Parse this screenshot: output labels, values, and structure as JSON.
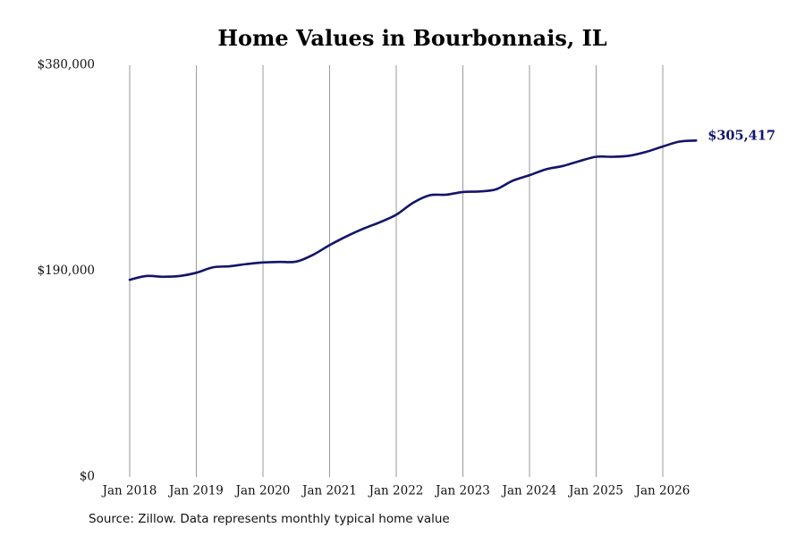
{
  "chart_data": {
    "type": "line",
    "title": "Home Values in Bourbonnais, IL",
    "xlabel": "",
    "ylabel": "",
    "x_ticks": [
      {
        "label": "Jan 2018",
        "year": 2018
      },
      {
        "label": "Jan 2019",
        "year": 2019
      },
      {
        "label": "Jan 2020",
        "year": 2020
      },
      {
        "label": "Jan 2021",
        "year": 2021
      },
      {
        "label": "Jan 2022",
        "year": 2022
      },
      {
        "label": "Jan 2023",
        "year": 2023
      },
      {
        "label": "Jan 2024",
        "year": 2024
      },
      {
        "label": "Jan 2025",
        "year": 2025
      },
      {
        "label": "Jan 2026",
        "year": 2026
      }
    ],
    "y_ticks": [
      {
        "label": "$380,000",
        "value": 380000
      },
      {
        "label": "$190,000",
        "value": 190000
      },
      {
        "label": "$0",
        "value": 0
      }
    ],
    "xlim": [
      "2018-01",
      "2026-07"
    ],
    "ylim": [
      0,
      380000
    ],
    "vertical_grid": true,
    "horizontal_grid": false,
    "series": [
      {
        "color": "#13146a",
        "points": [
          {
            "x": "2018-01",
            "y": 182000
          },
          {
            "x": "2018-04",
            "y": 185500
          },
          {
            "x": "2018-07",
            "y": 184800
          },
          {
            "x": "2018-10",
            "y": 185500
          },
          {
            "x": "2019-01",
            "y": 188500
          },
          {
            "x": "2019-04",
            "y": 193500
          },
          {
            "x": "2019-07",
            "y": 194500
          },
          {
            "x": "2019-10",
            "y": 196500
          },
          {
            "x": "2020-01",
            "y": 198000
          },
          {
            "x": "2020-04",
            "y": 198500
          },
          {
            "x": "2020-07",
            "y": 198800
          },
          {
            "x": "2020-10",
            "y": 205000
          },
          {
            "x": "2021-01",
            "y": 214000
          },
          {
            "x": "2021-04",
            "y": 222000
          },
          {
            "x": "2021-07",
            "y": 229000
          },
          {
            "x": "2021-10",
            "y": 235000
          },
          {
            "x": "2022-01",
            "y": 242000
          },
          {
            "x": "2022-04",
            "y": 253000
          },
          {
            "x": "2022-07",
            "y": 260000
          },
          {
            "x": "2022-10",
            "y": 260500
          },
          {
            "x": "2023-01",
            "y": 263000
          },
          {
            "x": "2023-04",
            "y": 263500
          },
          {
            "x": "2023-07",
            "y": 265500
          },
          {
            "x": "2023-10",
            "y": 273500
          },
          {
            "x": "2024-01",
            "y": 278500
          },
          {
            "x": "2024-04",
            "y": 284000
          },
          {
            "x": "2024-07",
            "y": 287000
          },
          {
            "x": "2024-10",
            "y": 291500
          },
          {
            "x": "2025-01",
            "y": 295500
          },
          {
            "x": "2025-04",
            "y": 295500
          },
          {
            "x": "2025-07",
            "y": 296500
          },
          {
            "x": "2025-10",
            "y": 300000
          },
          {
            "x": "2026-01",
            "y": 305000
          },
          {
            "x": "2026-04",
            "y": 309500
          },
          {
            "x": "2026-07",
            "y": 310500
          }
        ]
      }
    ],
    "end_label": "$305,417"
  },
  "source_note": "Source: Zillow. Data represents monthly typical home value"
}
